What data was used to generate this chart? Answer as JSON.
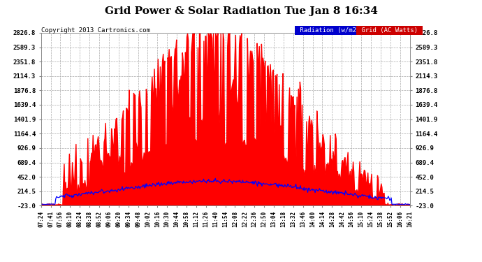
{
  "title": "Grid Power & Solar Radiation Tue Jan 8 16:34",
  "copyright": "Copyright 2013 Cartronics.com",
  "yticks": [
    -23.0,
    214.5,
    452.0,
    689.4,
    926.9,
    1164.4,
    1401.9,
    1639.4,
    1876.8,
    2114.3,
    2351.8,
    2589.3,
    2826.8
  ],
  "xtick_labels": [
    "07:24",
    "07:41",
    "07:56",
    "08:10",
    "08:24",
    "08:38",
    "08:52",
    "09:06",
    "09:20",
    "09:34",
    "09:48",
    "10:02",
    "10:16",
    "10:30",
    "10:44",
    "10:58",
    "11:12",
    "11:26",
    "11:40",
    "11:54",
    "12:08",
    "12:22",
    "12:36",
    "12:50",
    "13:04",
    "13:18",
    "13:32",
    "13:46",
    "14:00",
    "14:14",
    "14:28",
    "14:42",
    "14:56",
    "15:10",
    "15:24",
    "15:38",
    "15:52",
    "16:06",
    "16:21"
  ],
  "ymin": -23.0,
  "ymax": 2826.8,
  "plot_bg_color": "#ffffff",
  "outer_bg": "#ffffff",
  "grid_color": "#aaaaaa",
  "red_color": "#ff0000",
  "blue_color": "#0000ff",
  "legend_radiation_bg": "#0000cc",
  "legend_grid_bg": "#cc0000",
  "n_points": 500
}
